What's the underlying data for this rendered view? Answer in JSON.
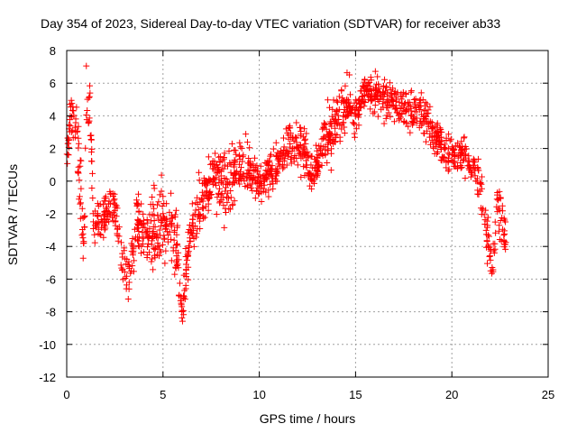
{
  "chart_data": {
    "type": "scatter",
    "title": "Day 354 of 2023, Sidereal Day-to-day VTEC variation (SDTVAR) for receiver ab33",
    "xlabel": "GPS time / hours",
    "ylabel": "SDTVAR / TECUs",
    "xlim": [
      0,
      25
    ],
    "ylim": [
      -12,
      8
    ],
    "xticks": [
      0,
      5,
      10,
      15,
      20,
      25
    ],
    "yticks": [
      -12,
      -10,
      -8,
      -6,
      -4,
      -2,
      0,
      2,
      4,
      6,
      8
    ],
    "xtick_labels": [
      "0",
      "5",
      "10",
      "15",
      "20",
      "25"
    ],
    "ytick_labels": [
      "-12",
      "-10",
      "-8",
      "-6",
      "-4",
      "-2",
      "0",
      "2",
      "4",
      "6",
      "8"
    ],
    "grid": true,
    "marker": "+",
    "color": "#ff0000",
    "series": [
      {
        "name": "ab33 SDTVAR",
        "trend": [
          {
            "x": 0.0,
            "y": 0.5,
            "spread": 1.5
          },
          {
            "x": 0.2,
            "y": 4.5,
            "spread": 1.2
          },
          {
            "x": 0.5,
            "y": 3.5,
            "spread": 1.5
          },
          {
            "x": 0.7,
            "y": -1.0,
            "spread": 2.5
          },
          {
            "x": 0.9,
            "y": -4.0,
            "spread": 0.7
          },
          {
            "x": 1.0,
            "y": 4.0,
            "spread": 2.0
          },
          {
            "x": 1.2,
            "y": 5.5,
            "spread": 1.5
          },
          {
            "x": 1.4,
            "y": -3.0,
            "spread": 1.2
          },
          {
            "x": 1.8,
            "y": -2.5,
            "spread": 1.2
          },
          {
            "x": 2.5,
            "y": -1.5,
            "spread": 0.8
          },
          {
            "x": 2.8,
            "y": -4.5,
            "spread": 1.5
          },
          {
            "x": 3.2,
            "y": -6.5,
            "spread": 1.5
          },
          {
            "x": 3.6,
            "y": -2.5,
            "spread": 1.5
          },
          {
            "x": 4.2,
            "y": -3.5,
            "spread": 1.5
          },
          {
            "x": 4.8,
            "y": -3.0,
            "spread": 2.5
          },
          {
            "x": 5.2,
            "y": -2.5,
            "spread": 1.8
          },
          {
            "x": 5.7,
            "y": -4.0,
            "spread": 2.0
          },
          {
            "x": 6.0,
            "y": -8.5,
            "spread": 1.2
          },
          {
            "x": 6.4,
            "y": -3.0,
            "spread": 1.5
          },
          {
            "x": 7.0,
            "y": -1.5,
            "spread": 1.5
          },
          {
            "x": 7.6,
            "y": 0.5,
            "spread": 1.5
          },
          {
            "x": 8.2,
            "y": 0.0,
            "spread": 2.0
          },
          {
            "x": 8.8,
            "y": 0.5,
            "spread": 1.5
          },
          {
            "x": 9.4,
            "y": 1.0,
            "spread": 1.5
          },
          {
            "x": 10.0,
            "y": -0.5,
            "spread": 1.0
          },
          {
            "x": 10.5,
            "y": 0.5,
            "spread": 1.2
          },
          {
            "x": 11.0,
            "y": 1.0,
            "spread": 1.0
          },
          {
            "x": 11.6,
            "y": 2.5,
            "spread": 1.2
          },
          {
            "x": 12.2,
            "y": 2.0,
            "spread": 1.5
          },
          {
            "x": 12.8,
            "y": 0.5,
            "spread": 1.0
          },
          {
            "x": 13.4,
            "y": 2.5,
            "spread": 1.5
          },
          {
            "x": 14.0,
            "y": 3.5,
            "spread": 1.5
          },
          {
            "x": 14.5,
            "y": 5.0,
            "spread": 1.5
          },
          {
            "x": 15.0,
            "y": 4.0,
            "spread": 1.0
          },
          {
            "x": 15.5,
            "y": 5.5,
            "spread": 0.8
          },
          {
            "x": 16.5,
            "y": 5.0,
            "spread": 1.2
          },
          {
            "x": 17.5,
            "y": 4.5,
            "spread": 1.0
          },
          {
            "x": 18.5,
            "y": 4.0,
            "spread": 1.2
          },
          {
            "x": 19.3,
            "y": 2.5,
            "spread": 1.2
          },
          {
            "x": 20.0,
            "y": 1.5,
            "spread": 1.0
          },
          {
            "x": 20.8,
            "y": 1.5,
            "spread": 1.0
          },
          {
            "x": 21.3,
            "y": 0.5,
            "spread": 1.5
          },
          {
            "x": 21.7,
            "y": -2.0,
            "spread": 1.5
          },
          {
            "x": 22.1,
            "y": -5.5,
            "spread": 1.0
          },
          {
            "x": 22.4,
            "y": -1.0,
            "spread": 1.5
          },
          {
            "x": 22.8,
            "y": -3.5,
            "spread": 1.2
          }
        ],
        "n_points": 1600
      }
    ]
  }
}
